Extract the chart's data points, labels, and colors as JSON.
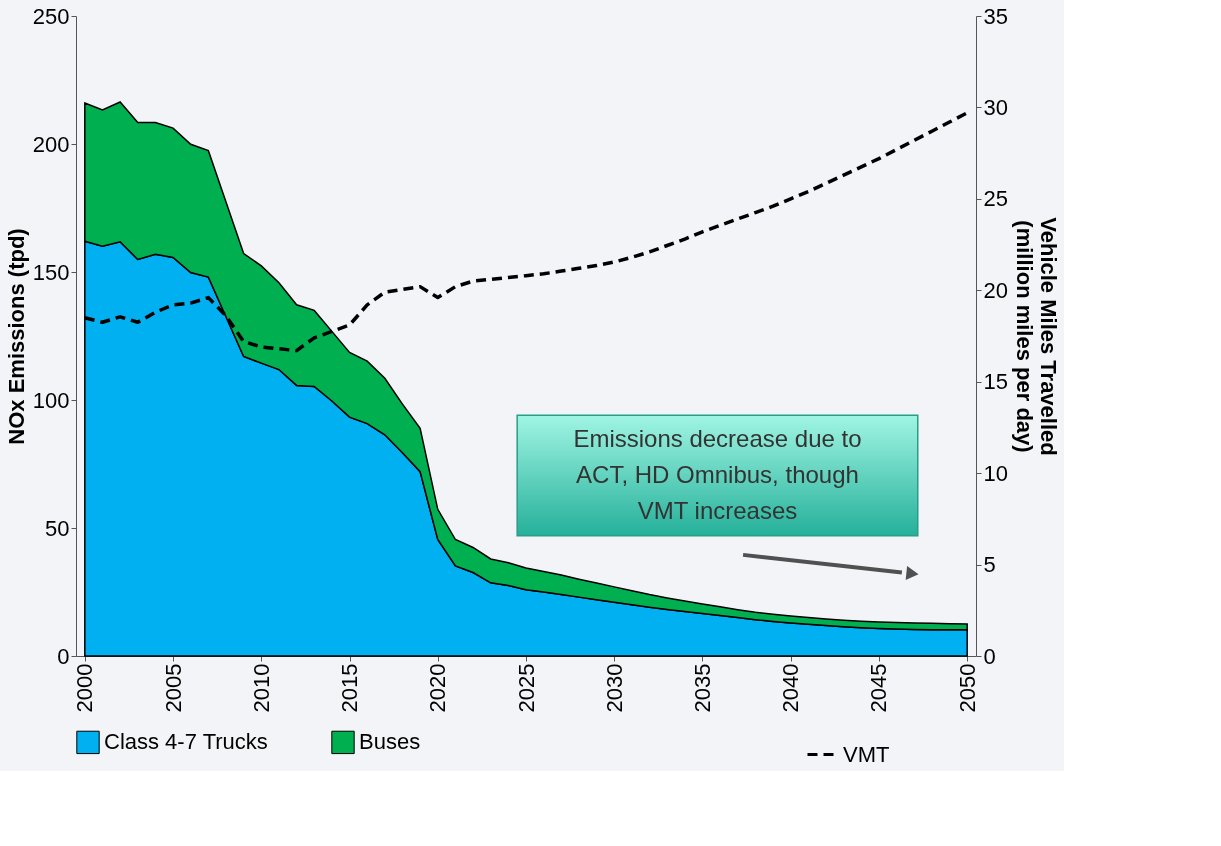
{
  "chart_data": {
    "type": "area",
    "stacked": true,
    "x": [
      2000,
      2001,
      2002,
      2003,
      2004,
      2005,
      2006,
      2007,
      2008,
      2009,
      2010,
      2011,
      2012,
      2013,
      2014,
      2015,
      2016,
      2017,
      2018,
      2019,
      2020,
      2021,
      2022,
      2023,
      2024,
      2025,
      2026,
      2027,
      2028,
      2029,
      2030,
      2031,
      2032,
      2033,
      2034,
      2035,
      2036,
      2037,
      2038,
      2039,
      2040,
      2041,
      2042,
      2043,
      2044,
      2045,
      2046,
      2047,
      2048,
      2049,
      2050
    ],
    "series": [
      {
        "name": "Class 4-7 Trucks",
        "color": "#00b0f0",
        "values": [
          162,
          160.1,
          161.8,
          154.9,
          156.9,
          155.7,
          149.8,
          148,
          132.5,
          117,
          114.4,
          111.9,
          105.7,
          105.3,
          99.6,
          93.3,
          90.8,
          86.4,
          79.4,
          72,
          45.5,
          35.2,
          32.6,
          28.6,
          27.5,
          25.9,
          25,
          24,
          23,
          22,
          21,
          20,
          19,
          18.2,
          17.4,
          16.6,
          15.8,
          15,
          14.2,
          13.5,
          12.9,
          12.4,
          11.9,
          11.4,
          11,
          10.7,
          10.5,
          10.4,
          10.3,
          10.3,
          10.3
        ]
      },
      {
        "name": "Buses",
        "color": "#00b050",
        "values": [
          54,
          53.2,
          54.6,
          53.5,
          51.5,
          50.5,
          50.1,
          49.4,
          44.8,
          40.2,
          38,
          33.9,
          31.5,
          29.7,
          27.2,
          25.3,
          24.4,
          22.1,
          19,
          16.9,
          11.8,
          10.3,
          9.8,
          9.3,
          8.9,
          8.5,
          8,
          7.6,
          7,
          6.5,
          6,
          5.5,
          5,
          4.5,
          4.1,
          3.7,
          3.4,
          3.1,
          2.9,
          2.8,
          2.7,
          2.6,
          2.6,
          2.6,
          2.6,
          2.6,
          2.6,
          2.5,
          2.5,
          2.3,
          2.2
        ]
      },
      {
        "name": "VMT",
        "type": "line",
        "axis": "y2",
        "color": "#000000",
        "line_style": "dashed",
        "values": [
          18.5,
          18.25,
          18.55,
          18.25,
          18.8,
          19.2,
          19.3,
          19.6,
          18.6,
          17.2,
          16.9,
          16.8,
          16.7,
          17.4,
          17.75,
          18.1,
          19.2,
          19.9,
          20.05,
          20.2,
          19.6,
          20.2,
          20.5,
          20.6,
          20.7,
          20.8,
          20.9,
          21.05,
          21.2,
          21.35,
          21.55,
          21.8,
          22.1,
          22.45,
          22.8,
          23.2,
          23.55,
          23.9,
          24.25,
          24.6,
          25.0,
          25.4,
          25.85,
          26.3,
          26.75,
          27.2,
          27.7,
          28.2,
          28.7,
          29.2,
          29.7
        ]
      }
    ],
    "xlim": [
      1999.5,
      2050.5
    ],
    "xticks": [
      2000,
      2005,
      2010,
      2015,
      2020,
      2025,
      2030,
      2035,
      2040,
      2045,
      2050
    ],
    "ylim": [
      0,
      250
    ],
    "yticks": [
      0,
      50,
      100,
      150,
      200,
      250
    ],
    "y2lim": [
      0,
      35
    ],
    "y2ticks": [
      0,
      5,
      10,
      15,
      20,
      25,
      30,
      35
    ],
    "ylabel": "NOx Emissions (tpd)",
    "y2label": "Vehicle Miles Travelled\n(million miles per day)",
    "annotations": [
      "Emissions decrease due to\nACT, HD Omnibus, though\nVMT increases"
    ],
    "legend": "bottom",
    "grid": false
  }
}
